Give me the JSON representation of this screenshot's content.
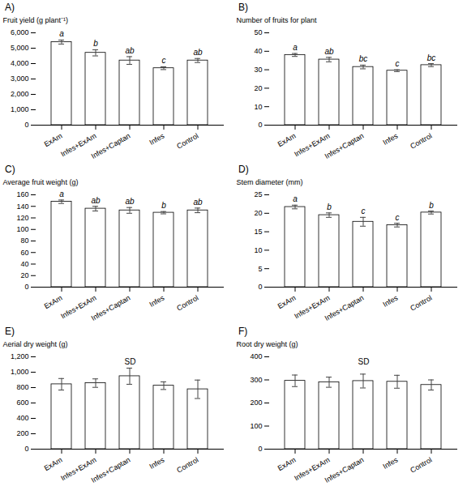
{
  "chart_data": [
    {
      "type": "bar",
      "title": "A)",
      "ylabel": "Fruit yield (g plant⁻¹)",
      "categories": [
        "ExAm",
        "Infes+ExAm",
        "Infes+Captan",
        "Infes",
        "Control"
      ],
      "values": [
        5400,
        4700,
        4200,
        3700,
        4200
      ],
      "errors": [
        130,
        200,
        250,
        90,
        130
      ],
      "letters": [
        "a",
        "b",
        "ab",
        "c",
        "ab"
      ],
      "color": "#ffffff",
      "ylim": [
        0,
        6000
      ],
      "yticks": [
        0,
        1000,
        2000,
        3000,
        4000,
        5000,
        6000
      ]
    },
    {
      "type": "bar",
      "title": "B)",
      "ylabel": "Number of fruits for plant",
      "categories": [
        "ExAm",
        "Infes+ExAm",
        "Infes+Captan",
        "Infes",
        "Control"
      ],
      "values": [
        38.0,
        35.5,
        31.5,
        29.5,
        32.5
      ],
      "errors": [
        0.8,
        1.2,
        1.0,
        0.5,
        0.8
      ],
      "letters": [
        "a",
        "ab",
        "bc",
        "c",
        "bc"
      ],
      "color": "#ffffff",
      "ylim": [
        0,
        50
      ],
      "yticks": [
        0,
        10,
        20,
        30,
        40,
        50
      ]
    },
    {
      "type": "bar",
      "title": "C)",
      "ylabel": "Average fruit weight (g)",
      "categories": [
        "ExAm",
        "Infes+ExAm",
        "Infes+Captan",
        "Infes",
        "Control"
      ],
      "values": [
        148,
        136,
        133,
        129,
        133
      ],
      "errors": [
        3,
        4,
        5,
        2,
        4
      ],
      "letters": [
        "a",
        "ab",
        "ab",
        "b",
        "ab"
      ],
      "color": "#ffffff",
      "ylim": [
        0,
        160
      ],
      "yticks": [
        0,
        20,
        40,
        60,
        80,
        100,
        120,
        140,
        160
      ]
    },
    {
      "type": "bar",
      "title": "D)",
      "ylabel": "Stem diameter (mm)",
      "categories": [
        "ExAm",
        "Infes+ExAm",
        "Infes+Captan",
        "Infes",
        "Control"
      ],
      "values": [
        21.7,
        19.5,
        17.7,
        16.8,
        20.2
      ],
      "errors": [
        0.5,
        0.6,
        1.2,
        0.5,
        0.4
      ],
      "letters": [
        "a",
        "b",
        "c",
        "c",
        "b"
      ],
      "color": "#ffffff",
      "ylim": [
        0,
        25
      ],
      "yticks": [
        0,
        5,
        10,
        15,
        20,
        25
      ]
    },
    {
      "type": "bar",
      "title": "E)",
      "ylabel": "Aerial dry weight (g)",
      "annotation": "SD",
      "categories": [
        "ExAm",
        "Infes+ExAm",
        "Infes+Captan",
        "Infes",
        "Control"
      ],
      "values": [
        843,
        858,
        948,
        825,
        778
      ],
      "errors": [
        75,
        55,
        105,
        50,
        120
      ],
      "color": "#ffffff",
      "ylim": [
        0,
        1200
      ],
      "yticks": [
        0,
        200,
        400,
        600,
        800,
        1000,
        1200
      ]
    },
    {
      "type": "bar",
      "title": "F)",
      "ylabel": "Root dry weight (g)",
      "annotation": "SD",
      "categories": [
        "ExAm",
        "Infes+ExAm",
        "Infes+Captan",
        "Infes",
        "Control"
      ],
      "values": [
        296,
        290,
        295,
        292,
        278
      ],
      "errors": [
        25,
        22,
        30,
        28,
        22
      ],
      "color": "#ffffff",
      "ylim": [
        0,
        400
      ],
      "yticks": [
        0,
        100,
        200,
        300,
        400
      ]
    }
  ]
}
